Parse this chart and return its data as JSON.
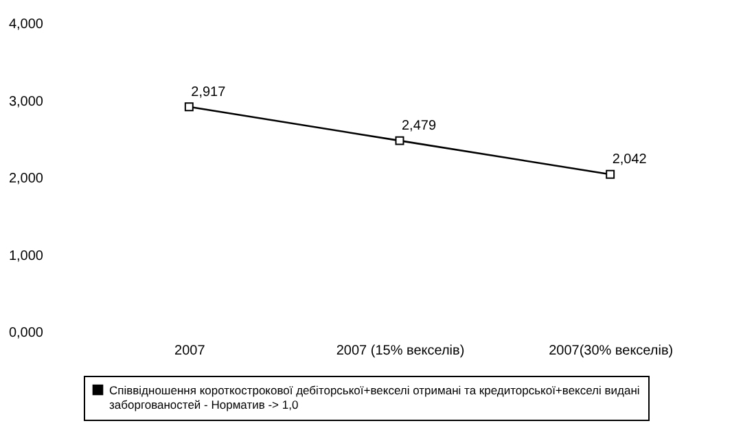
{
  "chart_data": {
    "type": "line",
    "categories": [
      "2007",
      "2007 (15% векселів)",
      "2007(30% векселів)"
    ],
    "series": [
      {
        "name": "Співвідношення короткострокової дебіторської+векселі отримані та кредиторської+векселі видані заборгованостей - Норматив -> 1,0",
        "color": "#000000",
        "values": [
          2.917,
          2.479,
          2.042
        ],
        "value_labels": [
          "2,917",
          "2,479",
          "2,042"
        ]
      }
    ],
    "ylim": [
      0,
      4
    ],
    "yticks": [
      {
        "value": 0,
        "label": "0,000"
      },
      {
        "value": 1,
        "label": "1,000"
      },
      {
        "value": 2,
        "label": "2,000"
      },
      {
        "value": 3,
        "label": "3,000"
      },
      {
        "value": 4,
        "label": "4,000"
      }
    ],
    "grid": false,
    "legend": "bottom",
    "marker": "square",
    "line_style": "solid"
  }
}
